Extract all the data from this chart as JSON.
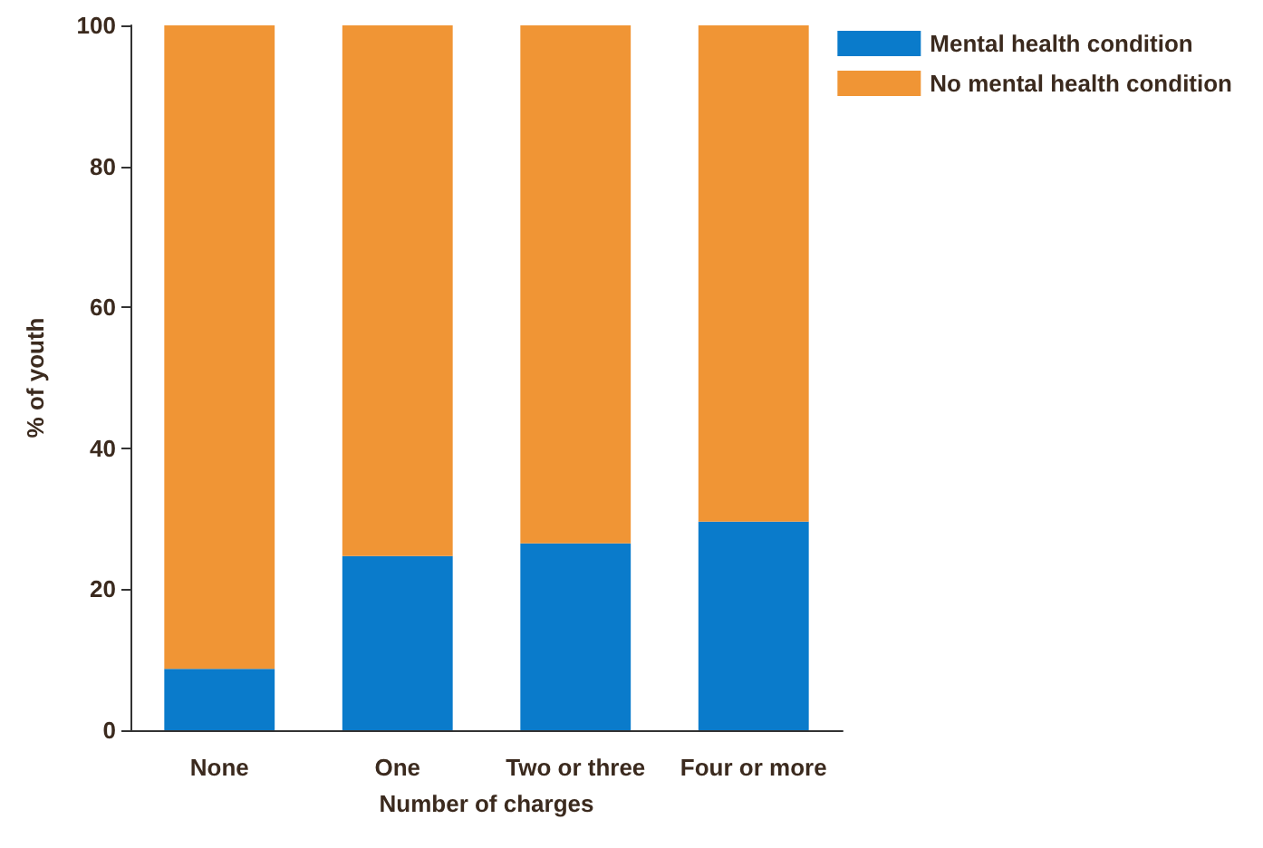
{
  "chart_data": {
    "type": "bar",
    "stacked": true,
    "xlabel": "Number of charges",
    "ylabel": "% of youth",
    "categories": [
      "None",
      "One",
      "Two or three",
      "Four or more"
    ],
    "series": [
      {
        "name": "Mental health condition",
        "color": "#0a7bcb",
        "values": [
          8.7,
          24.7,
          26.5,
          29.6
        ]
      },
      {
        "name": "No mental health condition",
        "color": "#f09535",
        "values": [
          91.3,
          75.3,
          73.5,
          70.4
        ]
      }
    ],
    "ylim": [
      0,
      100
    ],
    "yticks": [
      0,
      20,
      40,
      60,
      80,
      100
    ],
    "grid": false,
    "legend": "top right"
  }
}
